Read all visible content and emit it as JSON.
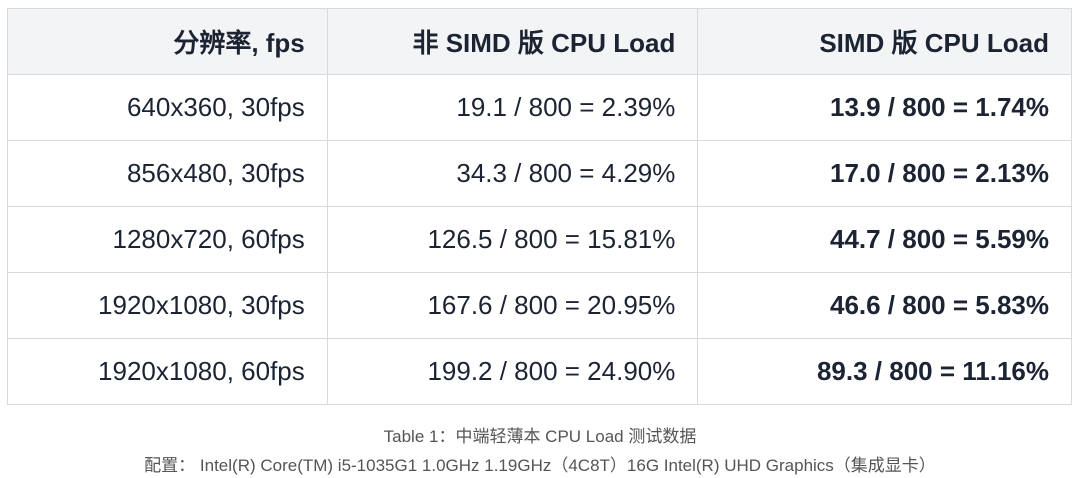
{
  "table": {
    "header": [
      "分辨率, fps",
      "非 SIMD 版 CPU Load",
      "SIMD 版 CPU Load"
    ],
    "rows": [
      [
        "640x360, 30fps",
        "19.1 / 800 = 2.39%",
        "13.9 / 800 = 1.74%"
      ],
      [
        "856x480, 30fps",
        "34.3 / 800 = 4.29%",
        "17.0 / 800 = 2.13%"
      ],
      [
        "1280x720, 60fps",
        "126.5 / 800 = 15.81%",
        "44.7 / 800 = 5.59%"
      ],
      [
        "1920x1080, 30fps",
        "167.6 / 800 = 20.95%",
        "46.6 / 800 = 5.83%"
      ],
      [
        "1920x1080, 60fps",
        "199.2 / 800 = 24.90%",
        "89.3 / 800 = 11.16%"
      ]
    ]
  },
  "caption": {
    "title": "Table 1：中端轻薄本 CPU Load 测试数据",
    "config": "配置： Intel(R) Core(TM) i5-1035G1 1.0GHz 1.19GHz（4C8T）16G Intel(R) UHD Graphics（集成显卡）"
  }
}
